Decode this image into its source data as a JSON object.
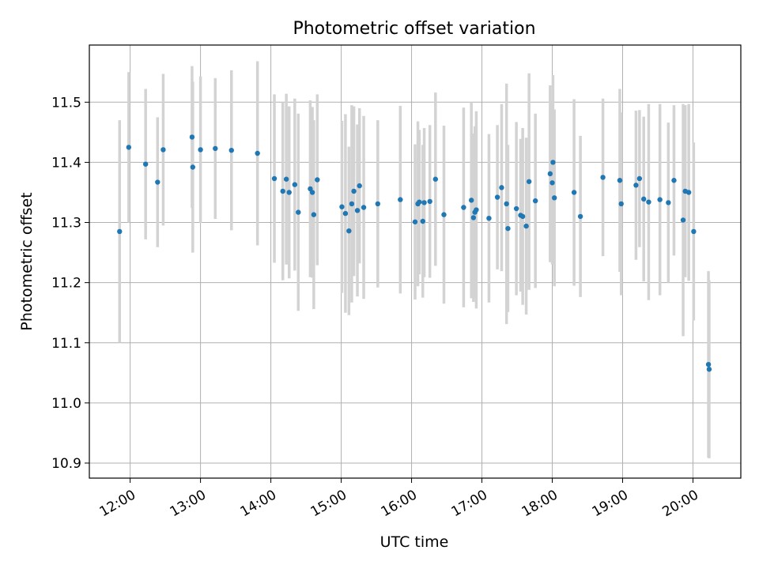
{
  "chart_data": {
    "type": "scatter",
    "title": "Photometric offset variation",
    "xlabel": "UTC time",
    "ylabel": "Photometric offset",
    "xlim": [
      11.42,
      20.68
    ],
    "ylim": [
      10.875,
      11.595
    ],
    "grid": true,
    "x_ticks": [
      {
        "value": 12,
        "label": "12:00"
      },
      {
        "value": 13,
        "label": "13:00"
      },
      {
        "value": 14,
        "label": "14:00"
      },
      {
        "value": 15,
        "label": "15:00"
      },
      {
        "value": 16,
        "label": "16:00"
      },
      {
        "value": 17,
        "label": "17:00"
      },
      {
        "value": 18,
        "label": "18:00"
      },
      {
        "value": 19,
        "label": "19:00"
      },
      {
        "value": 20,
        "label": "20:00"
      }
    ],
    "y_ticks": [
      {
        "value": 10.9,
        "label": "10.9"
      },
      {
        "value": 11.0,
        "label": "11.0"
      },
      {
        "value": 11.1,
        "label": "11.1"
      },
      {
        "value": 11.2,
        "label": "11.2"
      },
      {
        "value": 11.3,
        "label": "11.3"
      },
      {
        "value": 11.4,
        "label": "11.4"
      },
      {
        "value": 11.5,
        "label": "11.5"
      }
    ],
    "point_color": "#1f77b4",
    "error_color": "#d3d3d3",
    "series": [
      {
        "name": "Photometric offset",
        "x": [
          11.85,
          11.98,
          12.22,
          12.39,
          12.47,
          12.88,
          12.89,
          13.0,
          13.21,
          13.44,
          13.81,
          14.05,
          14.17,
          14.22,
          14.26,
          14.34,
          14.39,
          14.56,
          14.59,
          14.61,
          14.66,
          15.01,
          15.06,
          15.11,
          15.15,
          15.18,
          15.23,
          15.26,
          15.32,
          15.52,
          15.84,
          16.05,
          16.09,
          16.11,
          16.16,
          16.18,
          16.26,
          16.34,
          16.46,
          16.74,
          16.85,
          16.88,
          16.9,
          16.92,
          17.1,
          17.22,
          17.28,
          17.35,
          17.37,
          17.49,
          17.55,
          17.58,
          17.63,
          17.67,
          17.76,
          17.97,
          18.0,
          18.01,
          18.03,
          18.31,
          18.4,
          18.72,
          18.96,
          18.98,
          19.19,
          19.24,
          19.3,
          19.37,
          19.53,
          19.65,
          19.73,
          19.86,
          19.89,
          19.94,
          20.01,
          20.22,
          20.23
        ],
        "y": [
          11.285,
          11.425,
          11.397,
          11.367,
          11.421,
          11.442,
          11.392,
          11.421,
          11.423,
          11.42,
          11.415,
          11.373,
          11.352,
          11.372,
          11.35,
          11.363,
          11.317,
          11.356,
          11.35,
          11.313,
          11.371,
          11.326,
          11.315,
          11.286,
          11.331,
          11.352,
          11.32,
          11.361,
          11.325,
          11.331,
          11.338,
          11.301,
          11.331,
          11.334,
          11.302,
          11.333,
          11.335,
          11.372,
          11.313,
          11.325,
          11.337,
          11.308,
          11.317,
          11.321,
          11.307,
          11.342,
          11.358,
          11.331,
          11.29,
          11.323,
          11.312,
          11.31,
          11.294,
          11.368,
          11.336,
          11.381,
          11.366,
          11.4,
          11.341,
          11.35,
          11.31,
          11.375,
          11.37,
          11.331,
          11.362,
          11.373,
          11.339,
          11.334,
          11.338,
          11.333,
          11.37,
          11.304,
          11.352,
          11.35,
          11.285,
          11.064,
          11.056
        ],
        "err": [
          0.185,
          0.125,
          0.125,
          0.108,
          0.126,
          0.118,
          0.142,
          0.122,
          0.117,
          0.133,
          0.153,
          0.14,
          0.148,
          0.142,
          0.143,
          0.143,
          0.164,
          0.147,
          0.142,
          0.157,
          0.142,
          0.143,
          0.165,
          0.14,
          0.164,
          0.141,
          0.143,
          0.129,
          0.152,
          0.139,
          0.156,
          0.129,
          0.137,
          0.12,
          0.127,
          0.124,
          0.127,
          0.144,
          0.148,
          0.166,
          0.163,
          0.14,
          0.143,
          0.164,
          0.14,
          0.12,
          0.139,
          0.2,
          0.139,
          0.144,
          0.127,
          0.147,
          0.147,
          0.18,
          0.145,
          0.147,
          0.136,
          0.145,
          0.147,
          0.155,
          0.134,
          0.131,
          0.152,
          0.152,
          0.124,
          0.114,
          0.137,
          0.163,
          0.159,
          0.133,
          0.125,
          0.193,
          0.143,
          0.147,
          0.148,
          0.155,
          0.148
        ]
      }
    ]
  }
}
